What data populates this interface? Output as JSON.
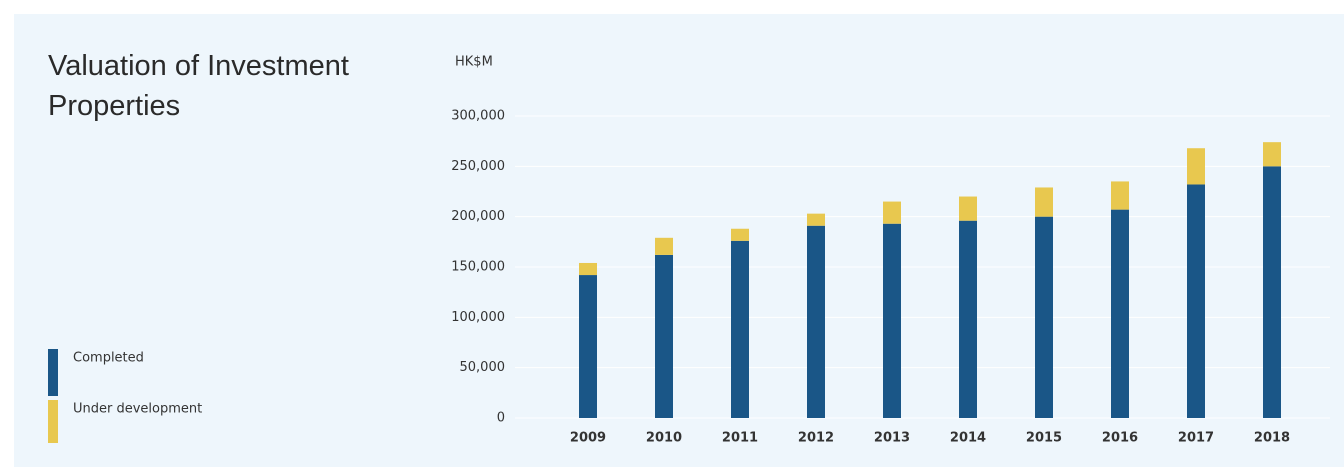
{
  "chart_data": {
    "type": "bar",
    "stacked": true,
    "title": "Valuation of Investment Properties",
    "y_label": "HK$M",
    "categories": [
      "2009",
      "2010",
      "2011",
      "2012",
      "2013",
      "2014",
      "2015",
      "2016",
      "2017",
      "2018"
    ],
    "series": [
      {
        "name": "Completed",
        "color": "#1a5687",
        "values": [
          142000,
          162000,
          176000,
          191000,
          193000,
          196000,
          200000,
          207000,
          232000,
          250000
        ]
      },
      {
        "name": "Under development",
        "color": "#e8c84f",
        "values": [
          12000,
          17000,
          12000,
          12000,
          22000,
          24000,
          29000,
          28000,
          36000,
          24000
        ]
      }
    ],
    "ylim": [
      0,
      300000
    ],
    "yticks": [
      0,
      {
        "value": 50000,
        "label": "50,000"
      },
      {
        "value": 100000,
        "label": "100,000"
      },
      {
        "value": 150000,
        "label": "150,000"
      },
      {
        "value": 200000,
        "label": "200,000"
      },
      {
        "value": 250000,
        "label": "250,000"
      },
      {
        "value": 300000,
        "label": "300,000"
      }
    ],
    "grid": true
  }
}
